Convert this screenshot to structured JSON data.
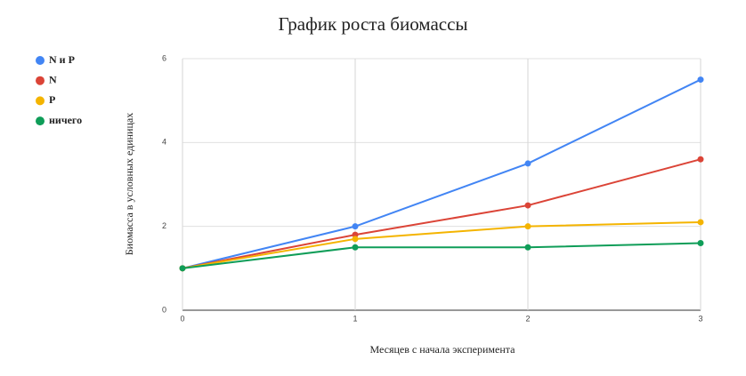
{
  "chart_data": {
    "type": "line",
    "title": "График роста биомассы",
    "x_label": "Месяцев с начала эксперимента",
    "y_label": "Биомасса в условных единицах",
    "x": [
      0,
      1,
      2,
      3
    ],
    "series": [
      {
        "name": "N и P",
        "color": "#4285f4",
        "values": [
          1,
          2,
          3.5,
          5.5
        ]
      },
      {
        "name": "N",
        "color": "#db4437",
        "values": [
          1,
          1.8,
          2.5,
          3.6
        ]
      },
      {
        "name": "P",
        "color": "#f4b400",
        "values": [
          1,
          1.7,
          2,
          2.1
        ]
      },
      {
        "name": "ничего",
        "color": "#0f9d58",
        "values": [
          1,
          1.5,
          1.5,
          1.6
        ]
      }
    ],
    "xlim": [
      0,
      3
    ],
    "xticks": [
      0,
      1,
      2,
      3
    ],
    "ylim": [
      0,
      6
    ],
    "yticks": [
      0,
      2,
      4,
      6
    ],
    "grid": true,
    "legend": "top-left"
  }
}
